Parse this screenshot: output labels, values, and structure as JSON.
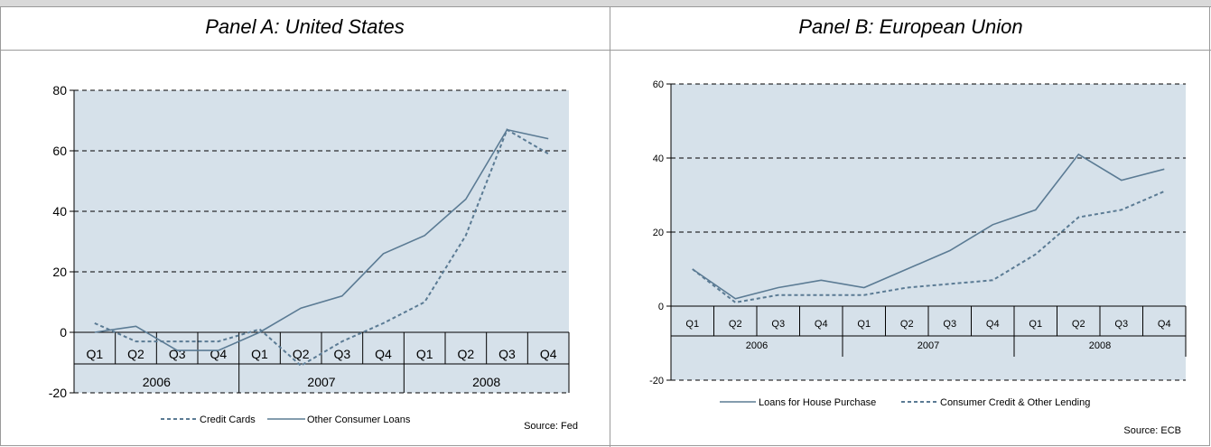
{
  "panels": {
    "a": {
      "title": "Panel A: United States"
    },
    "b": {
      "title": "Panel B: European Union"
    }
  },
  "chart_data": [
    {
      "type": "line",
      "quarters": [
        "Q1",
        "Q2",
        "Q3",
        "Q4",
        "Q1",
        "Q2",
        "Q3",
        "Q4",
        "Q1",
        "Q2",
        "Q3",
        "Q4"
      ],
      "years": [
        "2006",
        "2007",
        "2008"
      ],
      "ylim": [
        -20,
        80
      ],
      "yticks": [
        -20,
        0,
        20,
        40,
        60,
        80
      ],
      "grid": true,
      "legend_position": "bottom-center",
      "series": [
        {
          "name": "Credit Cards",
          "style": "dashed",
          "color": "#5b7b94",
          "values": [
            3,
            -3,
            -3,
            -3,
            1,
            -11,
            -3,
            3,
            10,
            32,
            67,
            59
          ]
        },
        {
          "name": "Other Consumer Loans",
          "style": "solid",
          "color": "#5b7b94",
          "values": [
            0,
            2,
            -6,
            -6,
            0,
            8,
            12,
            26,
            32,
            44,
            67,
            64
          ]
        }
      ],
      "source": "Source: Fed"
    },
    {
      "type": "line",
      "quarters": [
        "Q1",
        "Q2",
        "Q3",
        "Q4",
        "Q1",
        "Q2",
        "Q3",
        "Q4",
        "Q1",
        "Q2",
        "Q3",
        "Q4"
      ],
      "years": [
        "2006",
        "2007",
        "2008"
      ],
      "ylim": [
        -20,
        60
      ],
      "yticks": [
        -20,
        0,
        20,
        40,
        60
      ],
      "grid": true,
      "legend_position": "bottom-center",
      "series": [
        {
          "name": "Loans for House Purchase",
          "style": "solid",
          "color": "#5b7b94",
          "values": [
            10,
            2,
            5,
            7,
            5,
            10,
            15,
            22,
            26,
            41,
            34,
            37
          ]
        },
        {
          "name": "Consumer Credit & Other Lending",
          "style": "dashed",
          "color": "#5b7b94",
          "values": [
            10,
            1,
            3,
            3,
            3,
            5,
            6,
            7,
            14,
            24,
            26,
            31
          ]
        }
      ],
      "source": "Source: ECB"
    }
  ]
}
